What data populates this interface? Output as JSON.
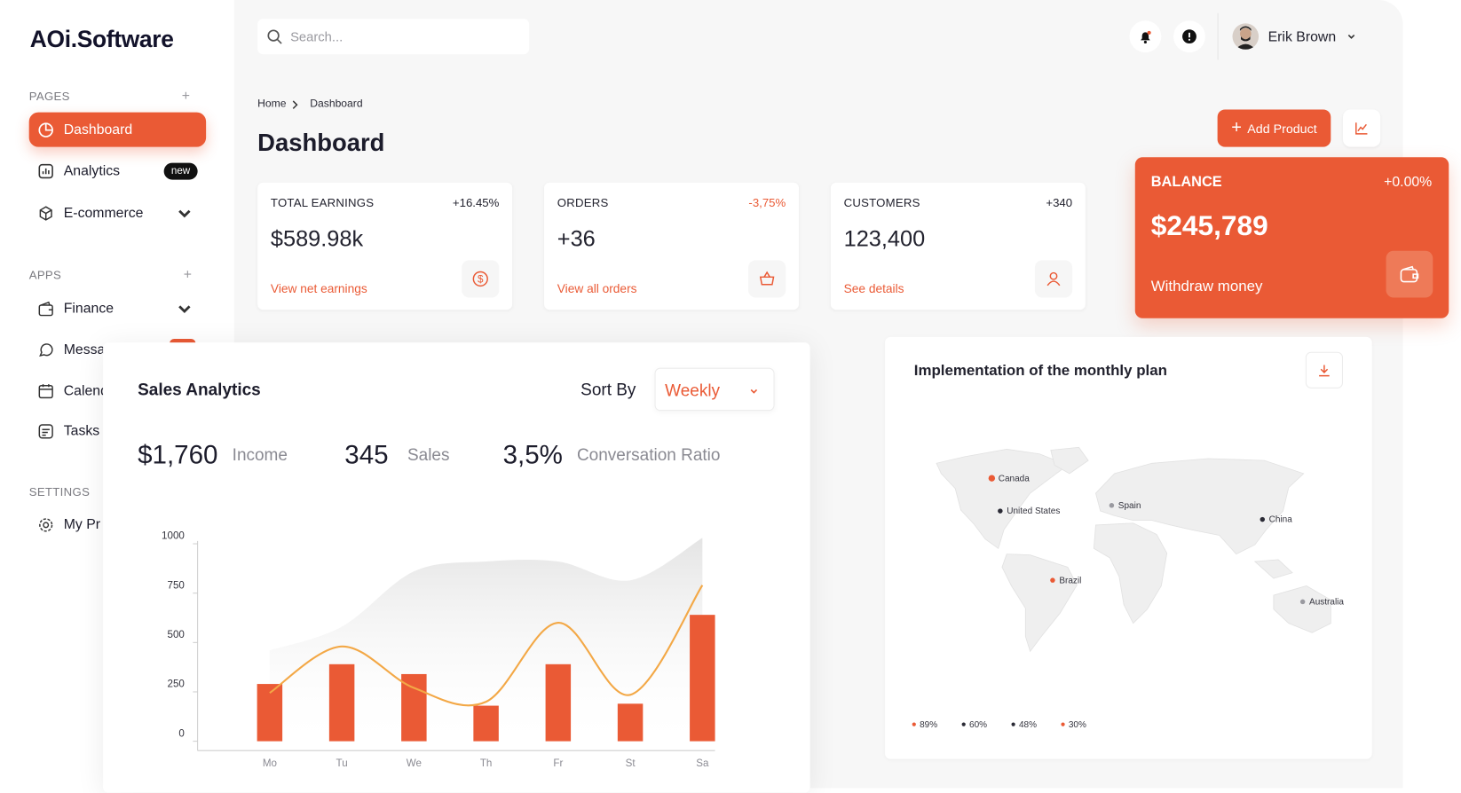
{
  "brand": "AOi.Software",
  "search": {
    "placeholder": "Search..."
  },
  "user": {
    "name": "Erik Brown"
  },
  "sidebar": {
    "sections": [
      {
        "title": "PAGES",
        "items": [
          {
            "label": "Dashboard"
          },
          {
            "label": "Analytics",
            "badge": "new"
          },
          {
            "label": "E-commerce"
          }
        ]
      },
      {
        "title": "APPS",
        "items": [
          {
            "label": "Finance"
          },
          {
            "label": "Messa"
          },
          {
            "label": "Calend"
          },
          {
            "label": "Tasks"
          }
        ]
      },
      {
        "title": "SETTINGS",
        "items": [
          {
            "label": "My Pr"
          }
        ]
      }
    ]
  },
  "breadcrumb": [
    "Home",
    "Dashboard"
  ],
  "page_title": "Dashboard",
  "actions": {
    "add_product": "Add Product"
  },
  "stats": [
    {
      "label": "TOTAL EARNINGS",
      "change": "+16.45%",
      "value": "$589.98k",
      "link": "View net earnings"
    },
    {
      "label": "ORDERS",
      "change": "-3,75%",
      "value": "+36",
      "link": "View all orders"
    },
    {
      "label": "CUSTOMERS",
      "change": "+340",
      "value": "123,400",
      "link": "See details"
    }
  ],
  "balance": {
    "label": "BALANCE",
    "change": "+0.00%",
    "value": "$245,789",
    "action": "Withdraw money"
  },
  "sales": {
    "title": "Sales Analytics",
    "sort_label": "Sort By",
    "sort_value": "Weekly",
    "metrics": [
      {
        "value": "$1,760",
        "label": "Income"
      },
      {
        "value": "345",
        "label": "Sales"
      },
      {
        "value": "3,5%",
        "label": "Conversation Ratio"
      }
    ]
  },
  "chart_data": {
    "type": "bar",
    "categories": [
      "Mo",
      "Tu",
      "We",
      "Th",
      "Fr",
      "St",
      "Sa"
    ],
    "ylim": [
      0,
      1000
    ],
    "yticks": [
      0,
      250,
      500,
      750,
      1000
    ],
    "series": [
      {
        "type": "area",
        "color": "#e9e9e9",
        "values": [
          460,
          580,
          860,
          910,
          910,
          815,
          1030
        ]
      },
      {
        "type": "bar",
        "color": "#ea5a35",
        "values": [
          290,
          390,
          340,
          180,
          390,
          190,
          640
        ]
      },
      {
        "type": "line",
        "color": "#f3a846",
        "values": [
          245,
          480,
          270,
          200,
          600,
          235,
          790
        ]
      }
    ]
  },
  "map": {
    "title": "Implementation of the monthly plan",
    "locations": [
      {
        "label": "Canada",
        "color": "#ea5a35"
      },
      {
        "label": "United States",
        "color": "#2a2a35"
      },
      {
        "label": "Spain",
        "color": "#9a9aa0"
      },
      {
        "label": "China",
        "color": "#2a2a35"
      },
      {
        "label": "Brazil",
        "color": "#ea5a35"
      },
      {
        "label": "Australia",
        "color": "#9a9aa0"
      }
    ],
    "legend": [
      {
        "label": "89%",
        "color": "#ea5a35"
      },
      {
        "label": "60%",
        "color": "#2a2a35"
      },
      {
        "label": "48%",
        "color": "#2a2a35"
      },
      {
        "label": "30%",
        "color": "#ea5a35"
      }
    ]
  }
}
